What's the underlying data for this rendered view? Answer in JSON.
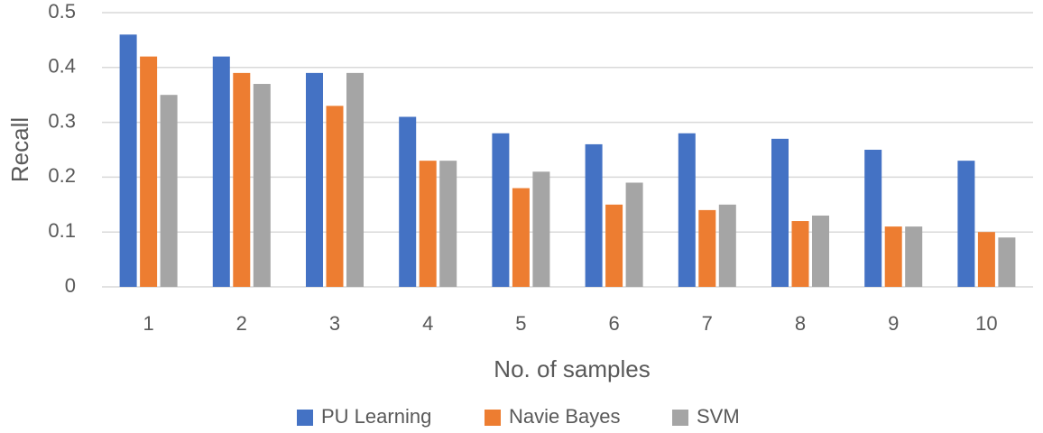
{
  "chart_data": {
    "type": "bar",
    "title": "",
    "xlabel": "No. of samples",
    "ylabel": "Recall",
    "ylim": [
      0,
      0.5
    ],
    "yticks": [
      "0",
      "0.1",
      "0.2",
      "0.3",
      "0.4",
      "0.5"
    ],
    "categories": [
      "1",
      "2",
      "3",
      "4",
      "5",
      "6",
      "7",
      "8",
      "9",
      "10"
    ],
    "grid": true,
    "legend_position": "bottom",
    "series": [
      {
        "name": "PU Learning",
        "color": "#4472c4",
        "values": [
          0.46,
          0.42,
          0.39,
          0.31,
          0.28,
          0.26,
          0.28,
          0.27,
          0.25,
          0.23
        ]
      },
      {
        "name": "Navie Bayes",
        "color": "#ed7d31",
        "values": [
          0.42,
          0.39,
          0.33,
          0.23,
          0.18,
          0.15,
          0.14,
          0.12,
          0.11,
          0.1
        ]
      },
      {
        "name": "SVM",
        "color": "#a5a5a5",
        "values": [
          0.35,
          0.37,
          0.39,
          0.23,
          0.21,
          0.19,
          0.15,
          0.13,
          0.11,
          0.09
        ]
      }
    ]
  }
}
